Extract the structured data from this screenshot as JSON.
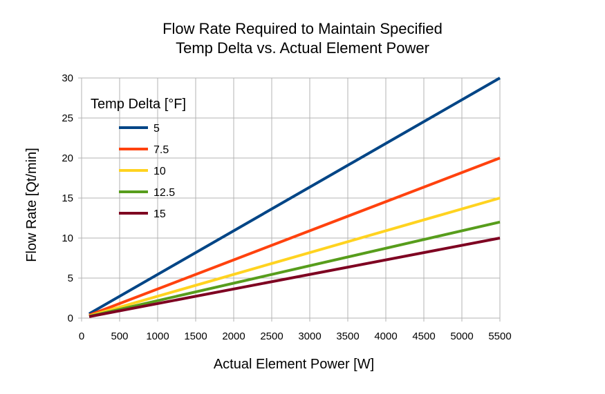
{
  "chart_data": {
    "type": "line",
    "title": "Flow Rate Required to Maintain Specified",
    "subtitle": "Temp Delta vs. Actual Element Power",
    "xlabel": "Actual Element Power [W]",
    "ylabel": "Flow Rate [Qt/min]",
    "xlim": [
      0,
      5500
    ],
    "ylim": [
      0,
      30
    ],
    "xticks": [
      "0",
      "500",
      "1000",
      "1500",
      "2000",
      "2500",
      "3000",
      "3500",
      "4000",
      "4500",
      "5000",
      "5500"
    ],
    "yticks": [
      "0",
      "5",
      "10",
      "15",
      "20",
      "25",
      "30"
    ],
    "grid": true,
    "legend_title": "Temp Delta [°F]",
    "legend_position": "top-left",
    "series": [
      {
        "name": "5",
        "color": "#004586",
        "x": [
          100,
          5500
        ],
        "values": [
          0.545,
          30.0
        ]
      },
      {
        "name": "7.5",
        "color": "#ff420e",
        "x": [
          100,
          5500
        ],
        "values": [
          0.364,
          20.0
        ]
      },
      {
        "name": "10",
        "color": "#ffd320",
        "x": [
          100,
          5500
        ],
        "values": [
          0.273,
          15.0
        ]
      },
      {
        "name": "12.5",
        "color": "#579d1c",
        "x": [
          100,
          5500
        ],
        "values": [
          0.218,
          12.0
        ]
      },
      {
        "name": "15",
        "color": "#7e0021",
        "x": [
          100,
          5500
        ],
        "values": [
          0.182,
          10.0
        ]
      }
    ]
  }
}
